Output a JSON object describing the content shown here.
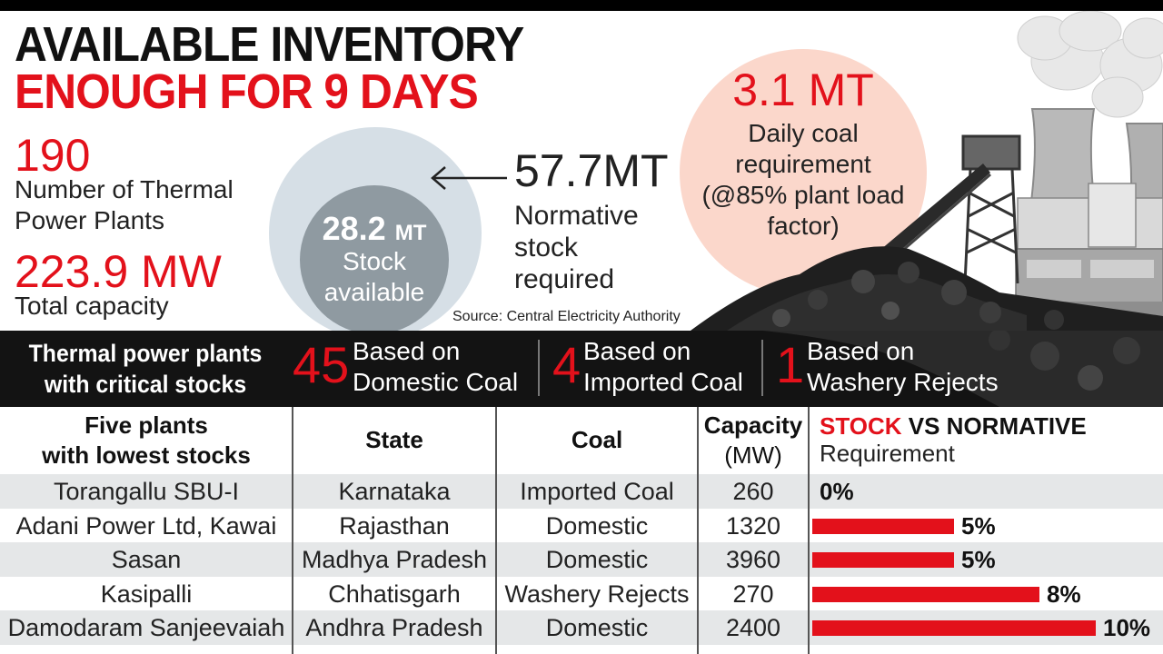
{
  "headline": {
    "line1": "AVAILABLE INVENTORY",
    "line2": "ENOUGH FOR 9 DAYS"
  },
  "stats": {
    "plants_value": "190",
    "plants_label": "Number of Thermal Power Plants",
    "capacity_value": "223.9 MW",
    "capacity_label": "Total capacity"
  },
  "stock": {
    "value": "28.2",
    "unit": "MT",
    "label_line1": "Stock",
    "label_line2": "available"
  },
  "normative": {
    "value": "57.7MT",
    "label": "Normative stock required"
  },
  "daily": {
    "value": "3.1 MT",
    "label": "Daily coal requirement (@85% plant load factor)"
  },
  "source": "Source: Central Electricity Authority",
  "critical": {
    "title": "Thermal power plants with critical stocks",
    "items": [
      {
        "count": "45",
        "label_line1": "Based on",
        "label_line2": "Domestic Coal"
      },
      {
        "count": "4",
        "label_line1": "Based on",
        "label_line2": "Imported Coal"
      },
      {
        "count": "1",
        "label_line1": "Based on",
        "label_line2": "Washery Rejects"
      }
    ]
  },
  "table": {
    "headers": {
      "plant_line1": "Five plants",
      "plant_line2": "with lowest stocks",
      "state": "State",
      "coal": "Coal",
      "capacity_line1": "Capacity",
      "capacity_line2": "(MW)",
      "stock_red": "STOCK",
      "stock_black": " VS NORMATIVE",
      "stock_sub": "Requirement"
    },
    "rows": [
      {
        "plant": "Torangallu SBU-I",
        "state": "Karnataka",
        "coal": "Imported Coal",
        "capacity": "260",
        "stock_pct": 0,
        "stock_label": "0%"
      },
      {
        "plant": "Adani Power Ltd, Kawai",
        "state": "Rajasthan",
        "coal": "Domestic",
        "capacity": "1320",
        "stock_pct": 5,
        "stock_label": "5%"
      },
      {
        "plant": "Sasan",
        "state": "Madhya Pradesh",
        "coal": "Domestic",
        "capacity": "3960",
        "stock_pct": 5,
        "stock_label": "5%"
      },
      {
        "plant": "Kasipalli",
        "state": "Chhatisgarh",
        "coal": "Washery Rejects",
        "capacity": "270",
        "stock_pct": 8,
        "stock_label": "8%"
      },
      {
        "plant": "Damodaram Sanjeevaiah",
        "state": "Andhra Pradesh",
        "coal": "Domestic",
        "capacity": "2400",
        "stock_pct": 10,
        "stock_label": "10%"
      }
    ]
  },
  "colors": {
    "accent_red": "#e3111b",
    "stock_circle": "#8f9aa1",
    "normative_circle": "#d6dfe6",
    "daily_circle": "#fbd7cb",
    "band": "#131313"
  }
}
